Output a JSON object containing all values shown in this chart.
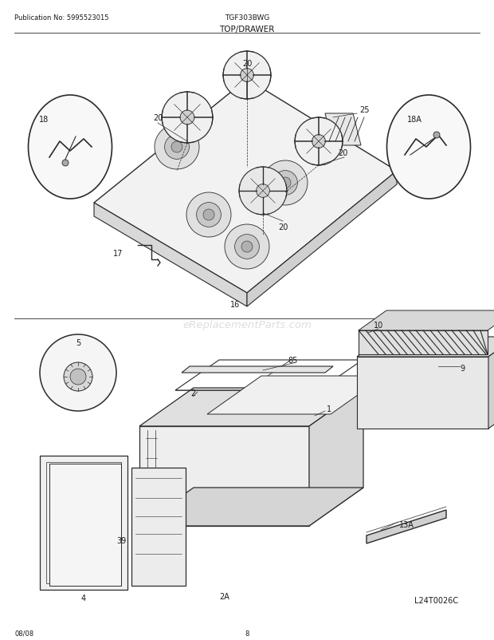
{
  "title": "TOP/DRAWER",
  "model": "TGF303BWG",
  "pub_no": "Publication No: 5995523015",
  "date": "08/08",
  "page": "8",
  "watermark": "eReplacementParts.com",
  "diagram_code": "L24T0026C",
  "bg_color": "#ffffff",
  "line_color": "#2a2a2a",
  "text_color": "#1a1a1a",
  "fig_w": 6.2,
  "fig_h": 8.03,
  "dpi": 100
}
